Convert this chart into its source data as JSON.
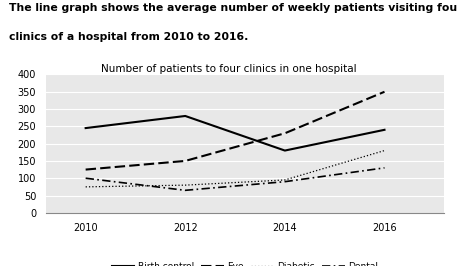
{
  "title_main_line1": "The line graph shows the average number of weekly patients visiting four",
  "title_main_line2": "clinics of a hospital from 2010 to 2016.",
  "title_chart": "Number of patients to four clinics in one hospital",
  "years": [
    2010,
    2012,
    2014,
    2016
  ],
  "birth_control": [
    245,
    280,
    180,
    240
  ],
  "eye": [
    125,
    150,
    230,
    350
  ],
  "diabetic": [
    75,
    80,
    95,
    180
  ],
  "dental": [
    100,
    65,
    90,
    130
  ],
  "ylim": [
    0,
    400
  ],
  "yticks": [
    0,
    50,
    100,
    150,
    200,
    250,
    300,
    350,
    400
  ],
  "xticks": [
    2010,
    2012,
    2014,
    2016
  ],
  "background_color": "#e8e8e8",
  "grid_color": "#ffffff"
}
